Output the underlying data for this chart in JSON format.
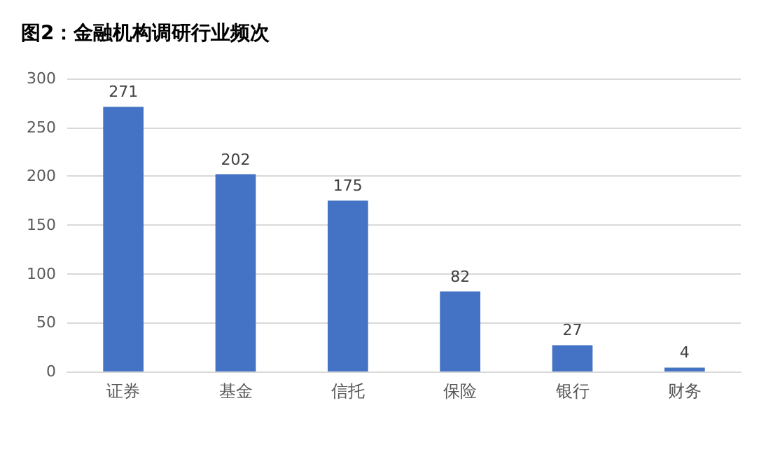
{
  "chart_data": {
    "type": "bar",
    "title": "图2：金融机构调研行业频次",
    "categories": [
      "证券",
      "基金",
      "信托",
      "保险",
      "银行",
      "财务"
    ],
    "values": [
      271,
      202,
      175,
      82,
      27,
      4
    ],
    "color": "#4472c4",
    "ylim": [
      0,
      300
    ],
    "yticks": [
      0,
      50,
      100,
      150,
      200,
      250,
      300
    ],
    "grid": "y",
    "data_labels": true
  }
}
